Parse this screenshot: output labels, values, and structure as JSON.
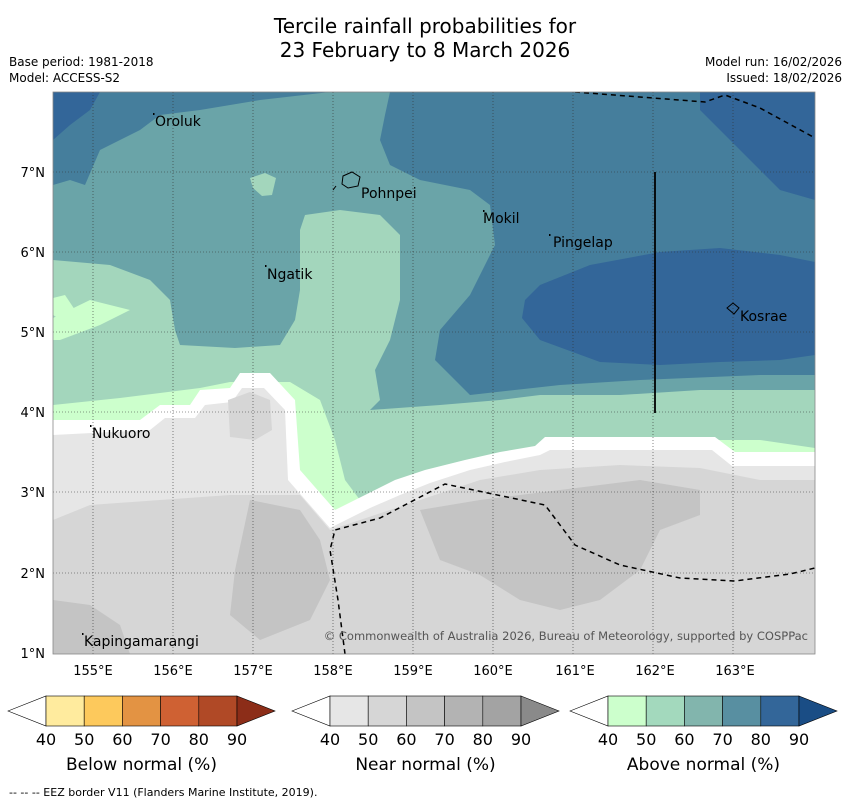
{
  "title": {
    "line1": "Tercile rainfall probabilities for",
    "line2": "23 February to 8 March 2026"
  },
  "meta": {
    "base_period": "Base period: 1981-2018",
    "model": "Model: ACCESS-S2",
    "model_run": "Model run: 16/02/2026",
    "issued": "Issued: 18/02/2026"
  },
  "map": {
    "lon_ticks": [
      "155°E",
      "156°E",
      "157°E",
      "158°E",
      "159°E",
      "160°E",
      "161°E",
      "162°E",
      "163°E"
    ],
    "lat_ticks": [
      "1°N",
      "2°N",
      "3°N",
      "4°N",
      "5°N",
      "6°N",
      "7°N"
    ],
    "places": [
      "Oroluk",
      "Pohnpei",
      "Mokil",
      "Pingelap",
      "Ngatik",
      "Kosrae",
      "Nukuoro",
      "Kapingamarangi"
    ],
    "copyright": "© Commonwealth of Australia 2026, Bureau of Meteorology, supported by COSPPac"
  },
  "colorbars": [
    {
      "label": "Below normal (%)",
      "ticks": [
        "40",
        "50",
        "60",
        "70",
        "80",
        "90"
      ],
      "colors": [
        "#ffffff",
        "#ffeb9e",
        "#fdc95c",
        "#e39343",
        "#cf6133",
        "#b04926",
        "#8c2d18"
      ]
    },
    {
      "label": "Near normal (%)",
      "ticks": [
        "40",
        "50",
        "60",
        "70",
        "80",
        "90"
      ],
      "colors": [
        "#ffffff",
        "#e6e6e6",
        "#d6d6d6",
        "#c4c4c4",
        "#b3b3b3",
        "#a3a3a3",
        "#8a8a8a"
      ]
    },
    {
      "label": "Above normal (%)",
      "ticks": [
        "40",
        "50",
        "60",
        "70",
        "80",
        "90"
      ],
      "colors": [
        "#ffffff",
        "#ccffcc",
        "#a3d9bd",
        "#82b5ad",
        "#588fa1",
        "#336699",
        "#1a4d85"
      ]
    }
  ],
  "footnote": "--  --  -- EEZ border V11 (Flanders Marine Institute, 2019)."
}
